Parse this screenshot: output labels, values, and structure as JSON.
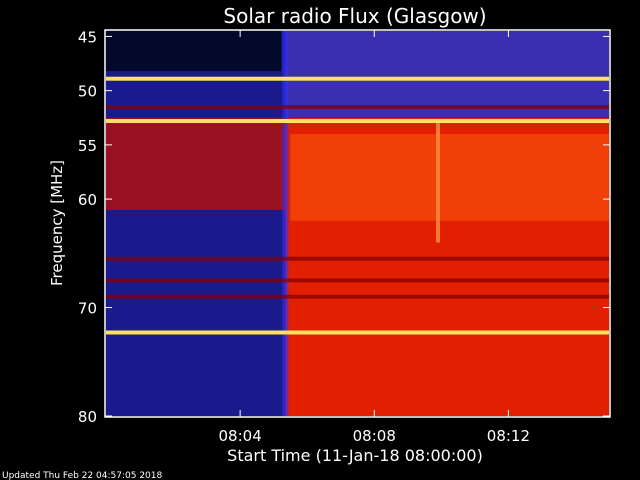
{
  "chart_data": {
    "type": "heatmap",
    "title": "Solar radio Flux (Glasgow)",
    "xlabel": "Start Time (11-Jan-18 08:00:00)",
    "ylabel": "Frequency [MHz]",
    "x_unit": "minutes after 08:00:00",
    "xlim": [
      0,
      15
    ],
    "ylim": [
      80,
      44.5
    ],
    "x_ticks": [
      {
        "value": 4,
        "label": "08:04"
      },
      {
        "value": 8,
        "label": "08:08"
      },
      {
        "value": 12,
        "label": "08:12"
      }
    ],
    "y_ticks": [
      {
        "value": 45,
        "label": "45"
      },
      {
        "value": 50,
        "label": "50"
      },
      {
        "value": 55,
        "label": "55"
      },
      {
        "value": 60,
        "label": "60"
      },
      {
        "value": 70,
        "label": "70"
      },
      {
        "value": 80,
        "label": "80"
      }
    ],
    "colors": {
      "background": "#000000",
      "quiet_low": "#1a1a8c",
      "quiet_dark": "#000820",
      "active_dark": "#8a0000",
      "active": "#e02000",
      "active_bright": "#ff5a10",
      "band_bright": "#ffe060"
    },
    "onset_time": 5.35,
    "bright_bands_mhz": [
      48.9,
      52.8,
      72.3
    ],
    "dark_bands_mhz": [
      51.5,
      65.5,
      67.5,
      69.0
    ],
    "vertical_feature_time": 9.9
  },
  "footer": "Updated Thu Feb 22 04:57:05 2018"
}
